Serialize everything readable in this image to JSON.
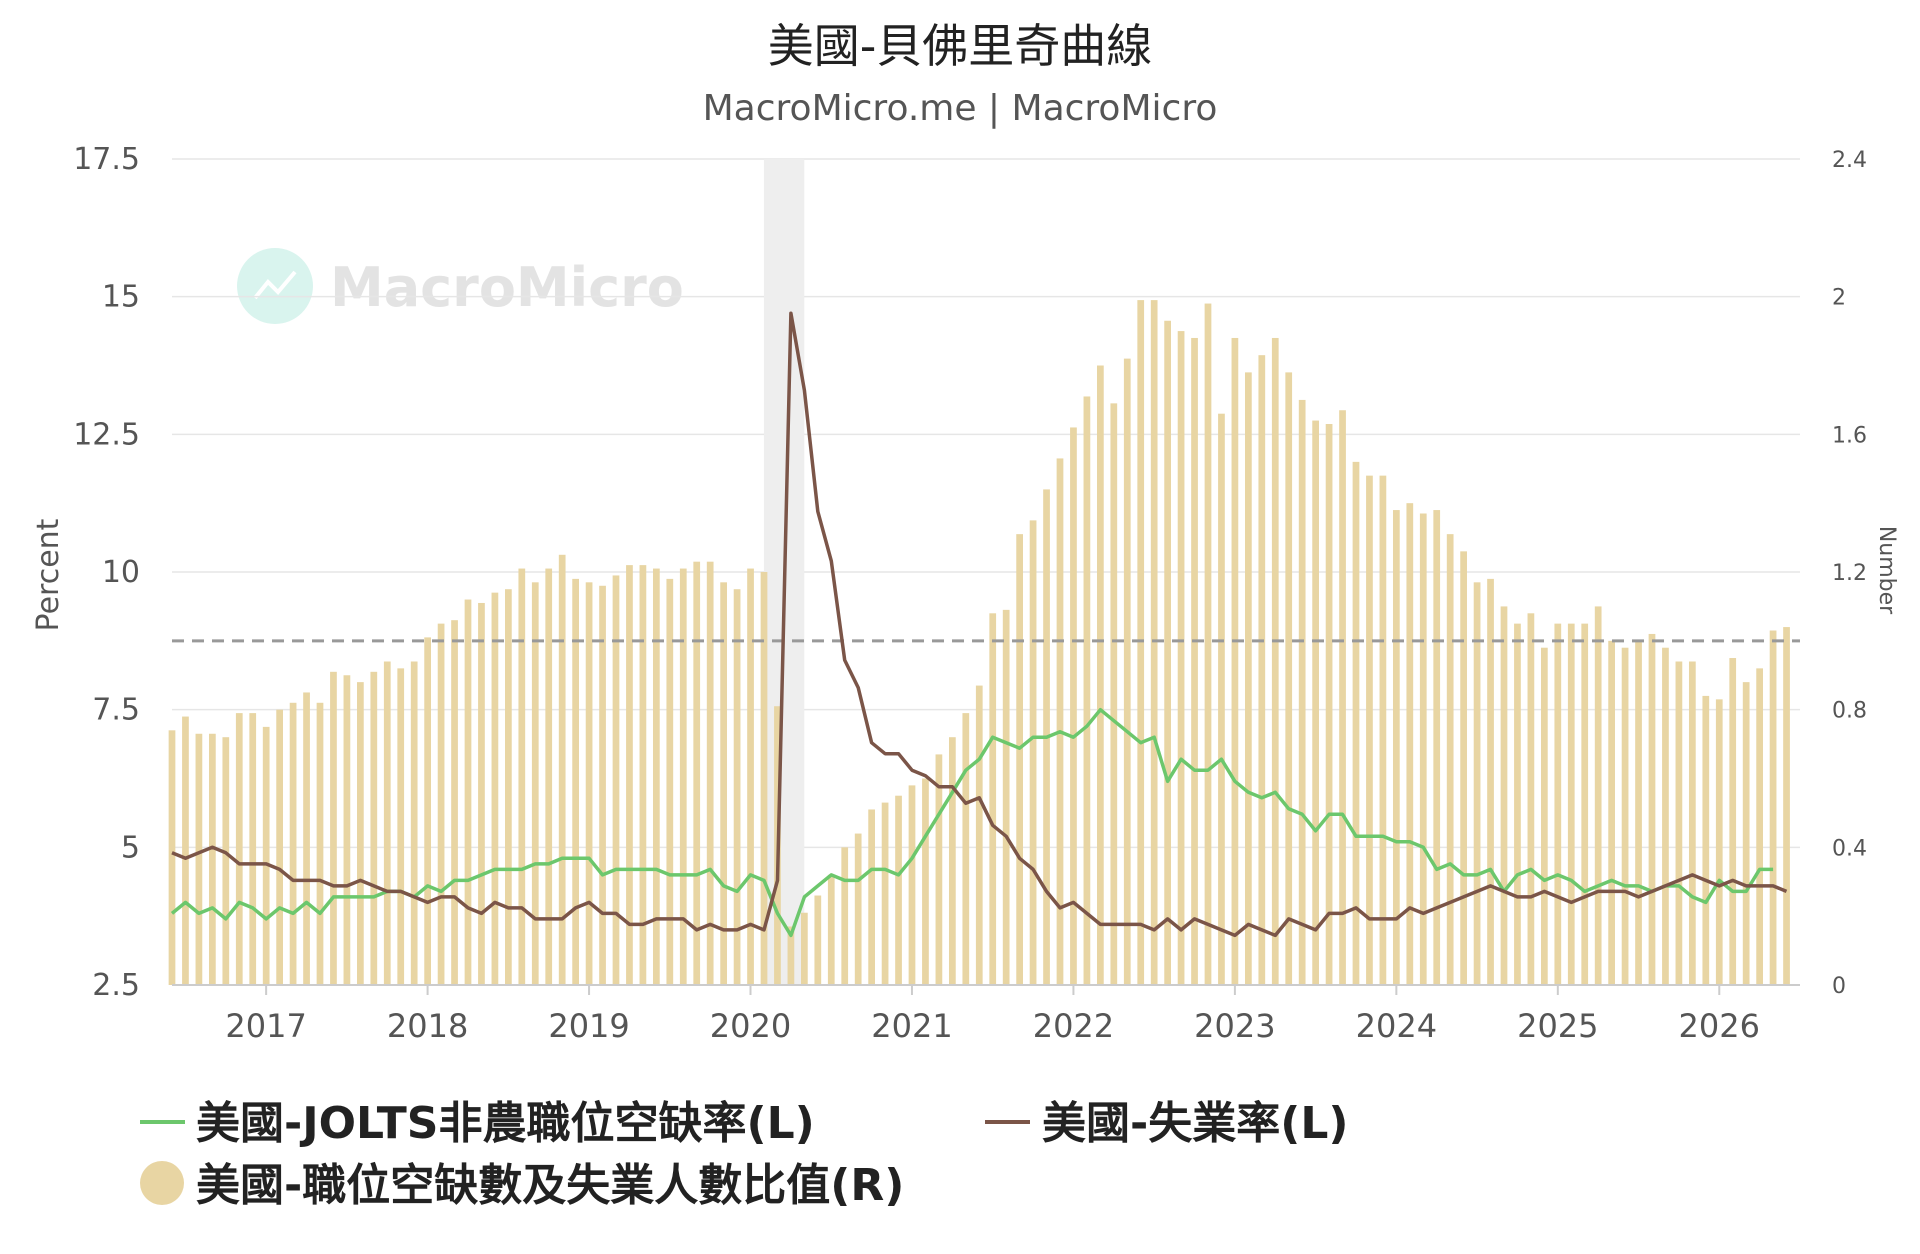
{
  "chart_data": {
    "type": "bar",
    "title": "美國-貝佛里奇曲線",
    "subtitle": "MacroMicro.me | MacroMicro",
    "watermark": "MacroMicro",
    "left_axis": {
      "title": "Percent",
      "min": 2.5,
      "max": 17.5,
      "ticks": [
        2.5,
        5,
        7.5,
        10,
        12.5,
        15,
        17.5
      ],
      "tick_labels": [
        "2.5",
        "5",
        "7.5",
        "10",
        "12.5",
        "15",
        "17.5"
      ]
    },
    "right_axis": {
      "title": "Number",
      "min": 0,
      "max": 2.4,
      "ticks": [
        0,
        0.4,
        0.8,
        1.2,
        1.6,
        2,
        2.4
      ],
      "tick_labels": [
        "0",
        "0.4",
        "0.8",
        "1.2",
        "1.6",
        "2",
        "2.4"
      ]
    },
    "x_axis": {
      "start": 2016.417,
      "end": 2026.5,
      "ticks": [
        2017,
        2018,
        2019,
        2020,
        2021,
        2022,
        2023,
        2024,
        2025,
        2026
      ],
      "tick_labels": [
        "2017",
        "2018",
        "2019",
        "2020",
        "2021",
        "2022",
        "2023",
        "2024",
        "2025",
        "2026"
      ]
    },
    "shaded_region": {
      "from": 2020.083,
      "to": 2020.333
    },
    "reference_line": {
      "axis": "right",
      "value": 1.0,
      "style": "dashed"
    },
    "grid": true,
    "legend": {
      "position": "bottom-left"
    },
    "series": [
      {
        "name": "美國-JOLTS非農職位空缺率(L)",
        "type": "line",
        "axis": "left",
        "color": "#6cc76c",
        "x_start": 2016.417,
        "x_step": 0.08333,
        "values": [
          3.8,
          4.0,
          3.8,
          3.9,
          3.7,
          4.0,
          3.9,
          3.7,
          3.9,
          3.8,
          4.0,
          3.8,
          4.1,
          4.1,
          4.1,
          4.1,
          4.2,
          4.2,
          4.1,
          4.3,
          4.2,
          4.4,
          4.4,
          4.5,
          4.6,
          4.6,
          4.6,
          4.7,
          4.7,
          4.8,
          4.8,
          4.8,
          4.5,
          4.6,
          4.6,
          4.6,
          4.6,
          4.5,
          4.5,
          4.5,
          4.6,
          4.3,
          4.2,
          4.5,
          4.4,
          3.8,
          3.4,
          4.1,
          4.3,
          4.5,
          4.4,
          4.4,
          4.6,
          4.6,
          4.5,
          4.8,
          5.2,
          5.6,
          6.0,
          6.4,
          6.6,
          7.0,
          6.9,
          6.8,
          7.0,
          7.0,
          7.1,
          7.0,
          7.2,
          7.5,
          7.3,
          7.1,
          6.9,
          7.0,
          6.2,
          6.6,
          6.4,
          6.4,
          6.6,
          6.2,
          6.0,
          5.9,
          6.0,
          5.7,
          5.6,
          5.3,
          5.6,
          5.6,
          5.2,
          5.2,
          5.2,
          5.1,
          5.1,
          5.0,
          4.6,
          4.7,
          4.5,
          4.5,
          4.6,
          4.2,
          4.5,
          4.6,
          4.4,
          4.5,
          4.4,
          4.2,
          4.3,
          4.4,
          4.3,
          4.3,
          4.2,
          4.3,
          4.3,
          4.1,
          4.0,
          4.4,
          4.2,
          4.2,
          4.6,
          4.6
        ]
      },
      {
        "name": "美國-失業率(L)",
        "type": "line",
        "axis": "left",
        "color": "#7b5548",
        "x_start": 2016.417,
        "x_step": 0.08333,
        "values": [
          4.9,
          4.8,
          4.9,
          5.0,
          4.9,
          4.7,
          4.7,
          4.7,
          4.6,
          4.4,
          4.4,
          4.4,
          4.3,
          4.3,
          4.4,
          4.3,
          4.2,
          4.2,
          4.1,
          4.0,
          4.1,
          4.1,
          3.9,
          3.8,
          4.0,
          3.9,
          3.9,
          3.7,
          3.7,
          3.7,
          3.9,
          4.0,
          3.8,
          3.8,
          3.6,
          3.6,
          3.7,
          3.7,
          3.7,
          3.5,
          3.6,
          3.5,
          3.5,
          3.6,
          3.5,
          4.4,
          14.7,
          13.3,
          11.1,
          10.2,
          8.4,
          7.9,
          6.9,
          6.7,
          6.7,
          6.4,
          6.3,
          6.1,
          6.1,
          5.8,
          5.9,
          5.4,
          5.2,
          4.8,
          4.6,
          4.2,
          3.9,
          4.0,
          3.8,
          3.6,
          3.6,
          3.6,
          3.6,
          3.5,
          3.7,
          3.5,
          3.7,
          3.6,
          3.5,
          3.4,
          3.6,
          3.5,
          3.4,
          3.7,
          3.6,
          3.5,
          3.8,
          3.8,
          3.9,
          3.7,
          3.7,
          3.7,
          3.9,
          3.8,
          3.9,
          4.0,
          4.1,
          4.2,
          4.3,
          4.2,
          4.1,
          4.1,
          4.2,
          4.1,
          4.0,
          4.1,
          4.2,
          4.2,
          4.2,
          4.1,
          4.2,
          4.3,
          4.4,
          4.5,
          4.4,
          4.3,
          4.4,
          4.3,
          4.3,
          4.3,
          4.2
        ]
      },
      {
        "name": "美國-職位空缺數及失業人數比值(R)",
        "type": "bar",
        "axis": "right",
        "color": "#e8d5a3",
        "x_start": 2016.417,
        "x_step": 0.08333,
        "values": [
          0.74,
          0.78,
          0.73,
          0.73,
          0.72,
          0.79,
          0.79,
          0.75,
          0.8,
          0.82,
          0.85,
          0.82,
          0.91,
          0.9,
          0.88,
          0.91,
          0.94,
          0.92,
          0.94,
          1.01,
          1.05,
          1.06,
          1.12,
          1.11,
          1.14,
          1.15,
          1.21,
          1.17,
          1.21,
          1.25,
          1.18,
          1.17,
          1.16,
          1.19,
          1.22,
          1.22,
          1.21,
          1.18,
          1.21,
          1.23,
          1.23,
          1.17,
          1.15,
          1.21,
          1.2,
          0.81,
          0.17,
          0.21,
          0.26,
          0.32,
          0.4,
          0.44,
          0.51,
          0.53,
          0.55,
          0.58,
          0.6,
          0.67,
          0.72,
          0.79,
          0.87,
          1.08,
          1.09,
          1.31,
          1.35,
          1.44,
          1.53,
          1.62,
          1.71,
          1.8,
          1.69,
          1.82,
          1.99,
          1.99,
          1.93,
          1.9,
          1.88,
          1.98,
          1.66,
          1.88,
          1.78,
          1.83,
          1.88,
          1.78,
          1.7,
          1.64,
          1.63,
          1.67,
          1.52,
          1.48,
          1.48,
          1.38,
          1.4,
          1.37,
          1.38,
          1.31,
          1.26,
          1.17,
          1.18,
          1.1,
          1.05,
          1.08,
          0.98,
          1.05,
          1.05,
          1.05,
          1.1,
          1.0,
          0.98,
          1.0,
          1.02,
          0.98,
          0.94,
          0.94,
          0.84,
          0.83,
          0.95,
          0.88,
          0.92,
          1.03,
          1.04
        ]
      }
    ]
  }
}
